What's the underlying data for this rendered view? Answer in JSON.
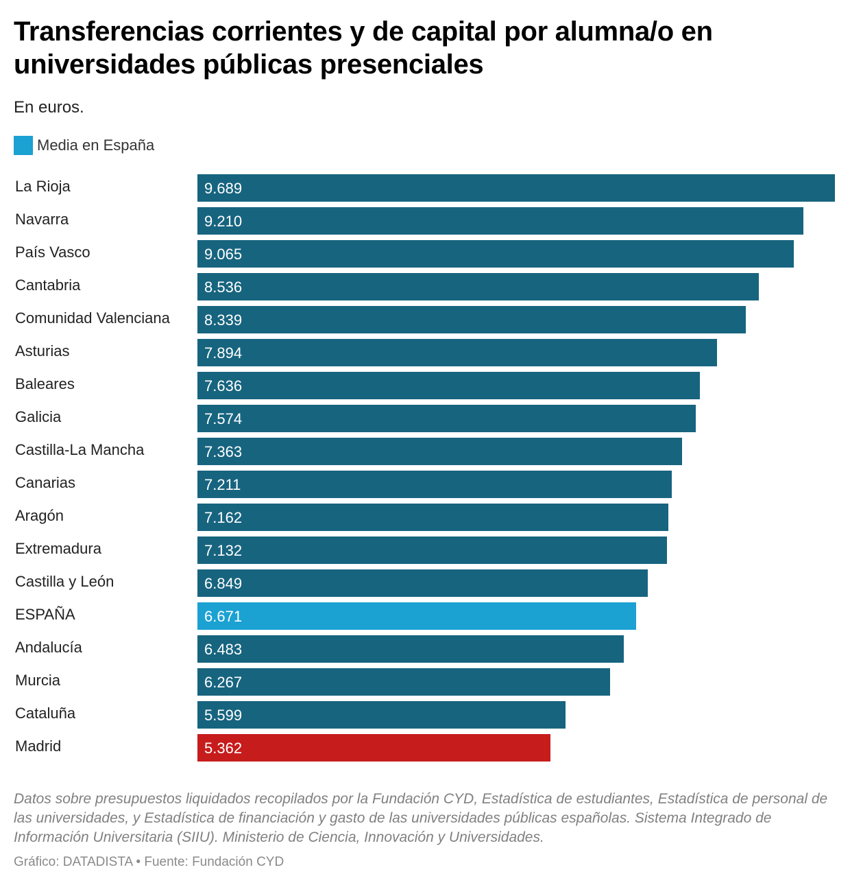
{
  "colors": {
    "default_bar": "#17647f",
    "spain_bar": "#1ba1d2",
    "madrid_bar": "#c71c1c",
    "value_text": "#ffffff"
  },
  "header": {
    "title": "Transferencias corrientes y de capital por alumna/o en universidades públicas presenciales",
    "subtitle": "En euros."
  },
  "legend": {
    "items": [
      {
        "label": "Media en España",
        "color": "#1ba1d2"
      }
    ]
  },
  "chart_data": {
    "type": "bar",
    "orientation": "horizontal",
    "title": "Transferencias corrientes y de capital por alumna/o en universidades públicas presenciales",
    "subtitle": "En euros.",
    "xlabel": "",
    "ylabel": "",
    "xlim": [
      0,
      9689
    ],
    "categories": [
      "La Rioja",
      "Navarra",
      "País Vasco",
      "Cantabria",
      "Comunidad Valenciana",
      "Asturias",
      "Baleares",
      "Galicia",
      "Castilla-La Mancha",
      "Canarias",
      "Aragón",
      "Extremadura",
      "Castilla y León",
      "ESPAÑA",
      "Andalucía",
      "Murcia",
      "Cataluña",
      "Madrid"
    ],
    "values": [
      9689,
      9210,
      9065,
      8536,
      8339,
      7894,
      7636,
      7574,
      7363,
      7211,
      7162,
      7132,
      6849,
      6671,
      6483,
      6267,
      5599,
      5362
    ],
    "value_labels": [
      "9.689",
      "9.210",
      "9.065",
      "8.536",
      "8.339",
      "7.894",
      "7.636",
      "7.574",
      "7.363",
      "7.211",
      "7.162",
      "7.132",
      "6.849",
      "6.671",
      "6.483",
      "6.267",
      "5.599",
      "5.362"
    ],
    "highlight": {
      "ESPAÑA": "#1ba1d2",
      "Madrid": "#c71c1c"
    },
    "legend": [
      "Media en España"
    ],
    "grid": false
  },
  "footer": {
    "notes": "Datos sobre presupuestos liquidados recopilados por la Fundación CYD, Estadística de estudiantes, Estadística de personal de las universidades, y Estadística de financiación y gasto de las universidades públicas españolas. Sistema Integrado de Información Universitaria (SIIU). Ministerio de Ciencia, Innovación y Universidades.",
    "credits": "Gráfico: DATADISTA • Fuente: Fundación CYD"
  }
}
